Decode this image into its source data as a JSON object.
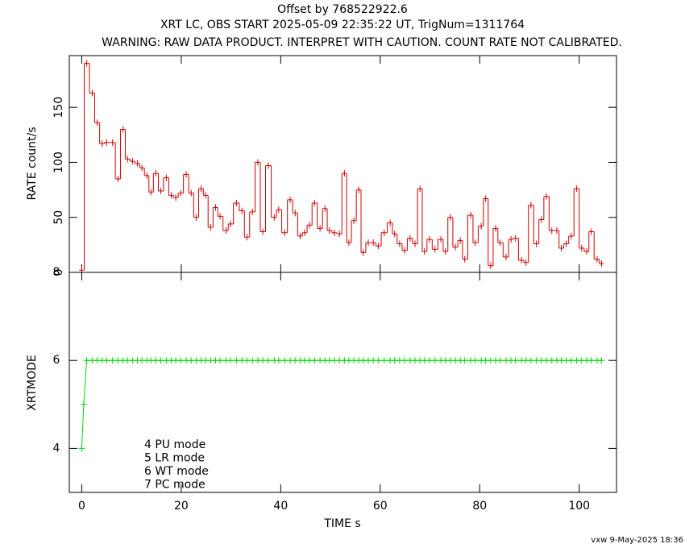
{
  "chart_data": [
    {
      "type": "step",
      "title": "Offset by 768522922.6",
      "subtitle": "XRT LC, OBS START 2025-05-09 22:35:22 UT, TrigNum=1311764",
      "annotation": "WARNING: RAW DATA PRODUCT. INTERPRET WITH CAUTION. COUNT RATE NOT CALIBRATED.",
      "ylabel": "RATE  count/s",
      "color": "#cc0000",
      "xlim": [
        -2.5,
        107.5
      ],
      "xticks": [
        0,
        20,
        40,
        60,
        80,
        100
      ],
      "ylim": [
        0,
        197
      ],
      "yticks": [
        0,
        50,
        100,
        150
      ],
      "x": [
        0.0,
        1.0,
        2.1,
        3.1,
        4.1,
        5.0,
        6.2,
        7.3,
        8.3,
        9.2,
        10.2,
        11.2,
        12.1,
        13.1,
        13.9,
        14.9,
        15.9,
        17.0,
        18.0,
        18.9,
        19.9,
        21.0,
        22.0,
        23.0,
        24.0,
        24.9,
        25.9,
        26.9,
        27.8,
        29.0,
        29.9,
        31.1,
        32.2,
        33.2,
        34.3,
        35.4,
        36.4,
        37.5,
        38.7,
        39.6,
        40.8,
        41.9,
        42.9,
        43.9,
        44.8,
        45.8,
        46.8,
        47.9,
        48.9,
        49.8,
        50.8,
        51.8,
        52.8,
        53.7,
        54.7,
        55.7,
        56.6,
        57.6,
        58.6,
        59.6,
        60.8,
        62.0,
        62.9,
        63.9,
        64.9,
        66.0,
        67.0,
        68.0,
        68.9,
        69.9,
        71.0,
        72.2,
        73.1,
        74.1,
        75.1,
        76.1,
        77.0,
        78.2,
        79.1,
        80.3,
        81.2,
        82.2,
        83.2,
        84.1,
        85.3,
        86.3,
        87.2,
        88.4,
        89.3,
        90.3,
        91.4,
        92.4,
        93.4,
        94.5,
        95.5,
        96.4,
        97.4,
        98.4,
        99.5,
        100.5,
        101.5,
        102.4,
        103.6,
        104.5
      ],
      "values": [
        2,
        190,
        163,
        136,
        117,
        118,
        118,
        85,
        130,
        103,
        101,
        99,
        95,
        88,
        73,
        90,
        74,
        86,
        70,
        68,
        72,
        89,
        72,
        50,
        76,
        70,
        41,
        59,
        51,
        38,
        44,
        63,
        56,
        32,
        55,
        100,
        37,
        97,
        50,
        57,
        36,
        66,
        54,
        33,
        36,
        43,
        63,
        40,
        58,
        38,
        36,
        35,
        90,
        27,
        47,
        75,
        18,
        27,
        27,
        24,
        36,
        45,
        35,
        26,
        20,
        31,
        26,
        76,
        19,
        30,
        21,
        30,
        19,
        50,
        23,
        29,
        12,
        52,
        27,
        42,
        67,
        6,
        40,
        27,
        14,
        30,
        31,
        11,
        9,
        61,
        26,
        48,
        69,
        38,
        38,
        22,
        26,
        33,
        76,
        22,
        19,
        37,
        12,
        8
      ]
    },
    {
      "type": "line",
      "ylabel": "XRTMODE",
      "xlabel": "TIME  s",
      "color": "#00dd00",
      "xlim": [
        -2.5,
        107.5
      ],
      "xticks": [
        0,
        20,
        40,
        60,
        80,
        100
      ],
      "ylim": [
        3,
        8
      ],
      "yticks": [
        4,
        6,
        8
      ],
      "annotations": [
        "4 PU mode",
        "5 LR mode",
        "6 WT mode",
        "7 PC mode"
      ],
      "x": [
        0.0,
        0.4,
        1.0,
        2.1,
        3.1,
        4.1,
        5.0,
        6.2,
        7.3,
        8.3,
        9.2,
        10.2,
        11.2,
        12.1,
        13.1,
        13.9,
        14.9,
        15.9,
        17.0,
        18.0,
        18.9,
        19.9,
        21.0,
        22.0,
        23.0,
        24.0,
        24.9,
        25.9,
        26.9,
        27.8,
        29.0,
        29.9,
        31.1,
        32.2,
        33.2,
        34.3,
        35.4,
        36.4,
        37.5,
        38.7,
        39.6,
        40.8,
        41.9,
        42.9,
        43.9,
        44.8,
        45.8,
        46.8,
        47.9,
        48.9,
        49.8,
        50.8,
        51.8,
        52.8,
        53.7,
        54.7,
        55.7,
        56.6,
        57.6,
        58.6,
        59.6,
        60.8,
        62.0,
        62.9,
        63.9,
        64.9,
        66.0,
        67.0,
        68.0,
        68.9,
        69.9,
        71.0,
        72.2,
        73.1,
        74.1,
        75.1,
        76.1,
        77.0,
        78.2,
        79.1,
        80.3,
        81.2,
        82.2,
        83.2,
        84.1,
        85.3,
        86.3,
        87.2,
        88.4,
        89.3,
        90.3,
        91.4,
        92.4,
        93.4,
        94.5,
        95.5,
        96.4,
        97.4,
        98.4,
        99.5,
        100.5,
        101.5,
        102.4,
        103.6,
        104.5
      ],
      "values": [
        4,
        5,
        6,
        6,
        6,
        6,
        6,
        6,
        6,
        6,
        6,
        6,
        6,
        6,
        6,
        6,
        6,
        6,
        6,
        6,
        6,
        6,
        6,
        6,
        6,
        6,
        6,
        6,
        6,
        6,
        6,
        6,
        6,
        6,
        6,
        6,
        6,
        6,
        6,
        6,
        6,
        6,
        6,
        6,
        6,
        6,
        6,
        6,
        6,
        6,
        6,
        6,
        6,
        6,
        6,
        6,
        6,
        6,
        6,
        6,
        6,
        6,
        6,
        6,
        6,
        6,
        6,
        6,
        6,
        6,
        6,
        6,
        6,
        6,
        6,
        6,
        6,
        6,
        6,
        6,
        6,
        6,
        6,
        6,
        6,
        6,
        6,
        6,
        6,
        6,
        6,
        6,
        6,
        6,
        6,
        6,
        6,
        6,
        6,
        6,
        6,
        6,
        6,
        6,
        6
      ]
    }
  ],
  "footer": "vxw  9-May-2025 18:36"
}
